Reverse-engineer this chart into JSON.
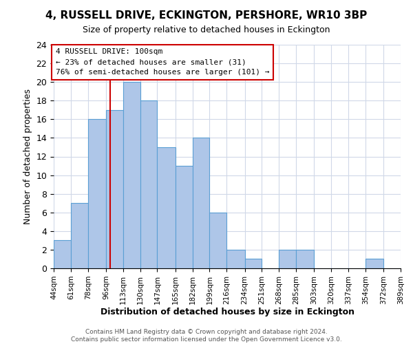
{
  "title": "4, RUSSELL DRIVE, ECKINGTON, PERSHORE, WR10 3BP",
  "subtitle": "Size of property relative to detached houses in Eckington",
  "xlabel": "Distribution of detached houses by size in Eckington",
  "ylabel": "Number of detached properties",
  "bin_edges": [
    44,
    61,
    78,
    96,
    113,
    130,
    147,
    165,
    182,
    199,
    216,
    234,
    251,
    268,
    285,
    303,
    320,
    337,
    354,
    372,
    389
  ],
  "bin_labels": [
    "44sqm",
    "61sqm",
    "78sqm",
    "96sqm",
    "113sqm",
    "130sqm",
    "147sqm",
    "165sqm",
    "182sqm",
    "199sqm",
    "216sqm",
    "234sqm",
    "251sqm",
    "268sqm",
    "285sqm",
    "303sqm",
    "320sqm",
    "337sqm",
    "354sqm",
    "372sqm",
    "389sqm"
  ],
  "counts": [
    3,
    7,
    16,
    17,
    20,
    18,
    13,
    11,
    14,
    6,
    2,
    1,
    0,
    2,
    2,
    0,
    0,
    0,
    1,
    0
  ],
  "bar_color": "#aec6e8",
  "bar_edge_color": "#5a9fd4",
  "vline_x": 100,
  "vline_color": "#cc0000",
  "annotation_title": "4 RUSSELL DRIVE: 100sqm",
  "annotation_line1": "← 23% of detached houses are smaller (31)",
  "annotation_line2": "76% of semi-detached houses are larger (101) →",
  "annotation_box_color": "#cc0000",
  "ylim": [
    0,
    24
  ],
  "yticks": [
    0,
    2,
    4,
    6,
    8,
    10,
    12,
    14,
    16,
    18,
    20,
    22,
    24
  ],
  "footer_line1": "Contains HM Land Registry data © Crown copyright and database right 2024.",
  "footer_line2": "Contains public sector information licensed under the Open Government Licence v3.0.",
  "background_color": "#ffffff",
  "grid_color": "#d0d8e8"
}
